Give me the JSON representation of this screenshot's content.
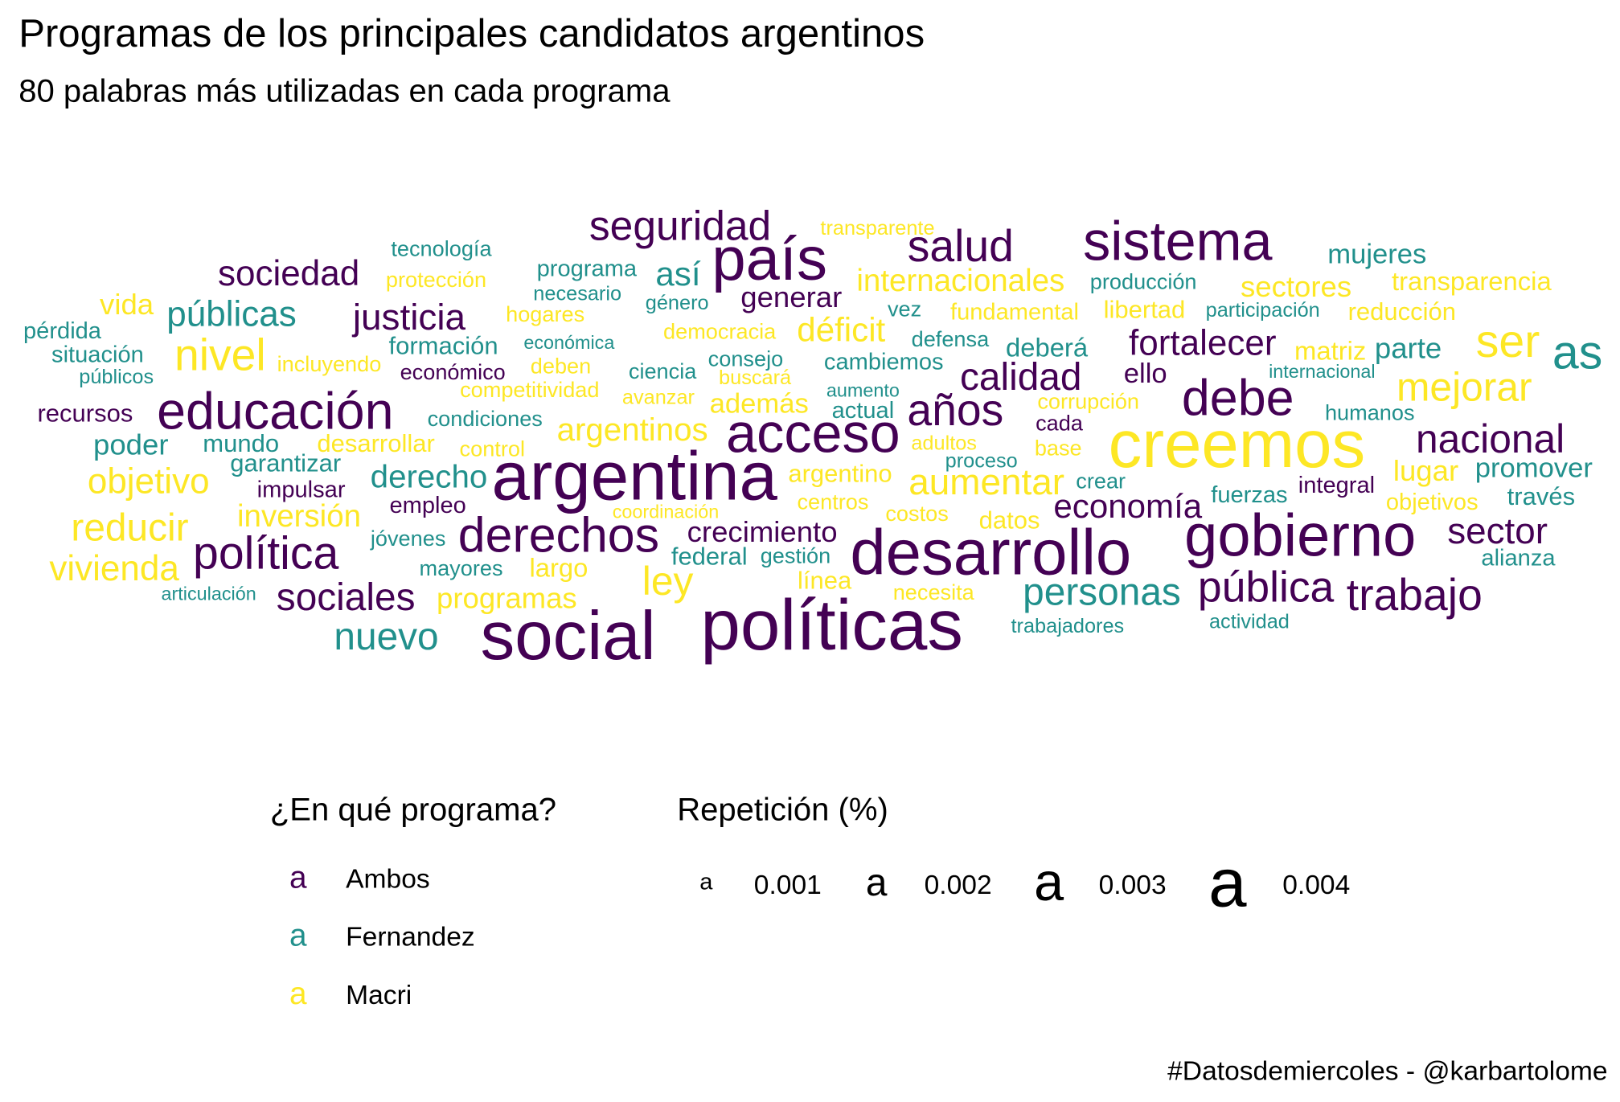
{
  "chart_data": {
    "type": "wordcloud",
    "title": "Programas de los principales candidatos argentinos",
    "subtitle": "80 palabras más utilizadas en cada programa",
    "caption": "#Datosdemiercoles - @karbartolome",
    "colors": {
      "Ambos": "#440154",
      "Fernandez": "#21908C",
      "Macri": "#FDE725"
    },
    "legend_color": {
      "title": "¿En qué programa?",
      "key_glyph": "a",
      "items": [
        {
          "label": "Ambos",
          "color": "#440154"
        },
        {
          "label": "Fernandez",
          "color": "#21908C"
        },
        {
          "label": "Macri",
          "color": "#FDE725"
        }
      ]
    },
    "legend_size": {
      "title": "Repetición (%)",
      "key_glyph": "a",
      "items": [
        {
          "label": "0.001",
          "value": 0.001
        },
        {
          "label": "0.002",
          "value": 0.002
        },
        {
          "label": "0.003",
          "value": 0.003
        },
        {
          "label": "0.004",
          "value": 0.004
        }
      ]
    },
    "words": [
      {
        "text": "seguridad",
        "group": "Ambos",
        "freq": 0.0022
      },
      {
        "text": "transparente",
        "group": "Macri",
        "freq": 0.0008
      },
      {
        "text": "tecnología",
        "group": "Fernandez",
        "freq": 0.0009
      },
      {
        "text": "programa",
        "group": "Fernandez",
        "freq": 0.001
      },
      {
        "text": "país",
        "group": "Ambos",
        "freq": 0.0035
      },
      {
        "text": "salud",
        "group": "Ambos",
        "freq": 0.0024
      },
      {
        "text": "sistema",
        "group": "Ambos",
        "freq": 0.0031
      },
      {
        "text": "mujeres",
        "group": "Fernandez",
        "freq": 0.0013
      },
      {
        "text": "sociedad",
        "group": "Ambos",
        "freq": 0.0018
      },
      {
        "text": "protección",
        "group": "Macri",
        "freq": 0.0009
      },
      {
        "text": "necesario",
        "group": "Fernandez",
        "freq": 0.0008
      },
      {
        "text": "así",
        "group": "Fernandez",
        "freq": 0.0017
      },
      {
        "text": "internacionales",
        "group": "Macri",
        "freq": 0.0015
      },
      {
        "text": "producción",
        "group": "Fernandez",
        "freq": 0.0009
      },
      {
        "text": "sectores",
        "group": "Macri",
        "freq": 0.0014
      },
      {
        "text": "transparencia",
        "group": "Macri",
        "freq": 0.0012
      },
      {
        "text": "vida",
        "group": "Macri",
        "freq": 0.0014
      },
      {
        "text": "públicas",
        "group": "Fernandez",
        "freq": 0.0018
      },
      {
        "text": "justicia",
        "group": "Ambos",
        "freq": 0.0019
      },
      {
        "text": "hogares",
        "group": "Macri",
        "freq": 0.0009
      },
      {
        "text": "género",
        "group": "Fernandez",
        "freq": 0.0008
      },
      {
        "text": "generar",
        "group": "Ambos",
        "freq": 0.0014
      },
      {
        "text": "vez",
        "group": "Fernandez",
        "freq": 0.0009
      },
      {
        "text": "fundamental",
        "group": "Macri",
        "freq": 0.001
      },
      {
        "text": "libertad",
        "group": "Macri",
        "freq": 0.0011
      },
      {
        "text": "participación",
        "group": "Fernandez",
        "freq": 0.0008
      },
      {
        "text": "reducción",
        "group": "Macri",
        "freq": 0.0011
      },
      {
        "text": "pérdida",
        "group": "Fernandez",
        "freq": 0.001
      },
      {
        "text": "económica",
        "group": "Fernandez",
        "freq": 0.0007
      },
      {
        "text": "democracia",
        "group": "Macri",
        "freq": 0.0009
      },
      {
        "text": "déficit",
        "group": "Macri",
        "freq": 0.0017
      },
      {
        "text": "defensa",
        "group": "Fernandez",
        "freq": 0.0009
      },
      {
        "text": "deberá",
        "group": "Fernandez",
        "freq": 0.0012
      },
      {
        "text": "fortalecer",
        "group": "Ambos",
        "freq": 0.0018
      },
      {
        "text": "matriz",
        "group": "Macri",
        "freq": 0.0012
      },
      {
        "text": "parte",
        "group": "Fernandez",
        "freq": 0.0014
      },
      {
        "text": "ser",
        "group": "Macri",
        "freq": 0.0025
      },
      {
        "text": "as",
        "group": "Fernandez",
        "freq": 0.0026
      },
      {
        "text": "situación",
        "group": "Fernandez",
        "freq": 0.001
      },
      {
        "text": "nivel",
        "group": "Macri",
        "freq": 0.0024
      },
      {
        "text": "incluyendo",
        "group": "Macri",
        "freq": 0.0009
      },
      {
        "text": "formación",
        "group": "Fernandez",
        "freq": 0.0011
      },
      {
        "text": "consejo",
        "group": "Fernandez",
        "freq": 0.0009
      },
      {
        "text": "cambiemos",
        "group": "Fernandez",
        "freq": 0.001
      },
      {
        "text": "calidad",
        "group": "Ambos",
        "freq": 0.002
      },
      {
        "text": "ello",
        "group": "Ambos",
        "freq": 0.0013
      },
      {
        "text": "internacional",
        "group": "Fernandez",
        "freq": 0.0007
      },
      {
        "text": "públicos",
        "group": "Fernandez",
        "freq": 0.0008
      },
      {
        "text": "económico",
        "group": "Ambos",
        "freq": 0.0009
      },
      {
        "text": "deben",
        "group": "Macri",
        "freq": 0.0009
      },
      {
        "text": "ciencia",
        "group": "Fernandez",
        "freq": 0.0009
      },
      {
        "text": "buscará",
        "group": "Macri",
        "freq": 0.0008
      },
      {
        "text": "debe",
        "group": "Ambos",
        "freq": 0.0028
      },
      {
        "text": "mejorar",
        "group": "Macri",
        "freq": 0.0021
      },
      {
        "text": "competitividad",
        "group": "Macri",
        "freq": 0.0009
      },
      {
        "text": "aumento",
        "group": "Fernandez",
        "freq": 0.0007
      },
      {
        "text": "educación",
        "group": "Ambos",
        "freq": 0.0029
      },
      {
        "text": "avanzar",
        "group": "Macri",
        "freq": 0.0008
      },
      {
        "text": "además",
        "group": "Macri",
        "freq": 0.0013
      },
      {
        "text": "corrupción",
        "group": "Macri",
        "freq": 0.0009
      },
      {
        "text": "recursos",
        "group": "Ambos",
        "freq": 0.0011
      },
      {
        "text": "actual",
        "group": "Fernandez",
        "freq": 0.001
      },
      {
        "text": "años",
        "group": "Ambos",
        "freq": 0.0024
      },
      {
        "text": "cada",
        "group": "Ambos",
        "freq": 0.0009
      },
      {
        "text": "humanos",
        "group": "Fernandez",
        "freq": 0.0009
      },
      {
        "text": "condiciones",
        "group": "Fernandez",
        "freq": 0.0009
      },
      {
        "text": "argentinos",
        "group": "Macri",
        "freq": 0.0016
      },
      {
        "text": "acceso",
        "group": "Ambos",
        "freq": 0.0031
      },
      {
        "text": "creemos",
        "group": "Macri",
        "freq": 0.0039
      },
      {
        "text": "nacional",
        "group": "Ambos",
        "freq": 0.0021
      },
      {
        "text": "poder",
        "group": "Fernandez",
        "freq": 0.0014
      },
      {
        "text": "mundo",
        "group": "Fernandez",
        "freq": 0.0011
      },
      {
        "text": "desarrollar",
        "group": "Macri",
        "freq": 0.0011
      },
      {
        "text": "control",
        "group": "Macri",
        "freq": 0.0009
      },
      {
        "text": "adultos",
        "group": "Macri",
        "freq": 0.0008
      },
      {
        "text": "base",
        "group": "Macri",
        "freq": 0.0009
      },
      {
        "text": "garantizar",
        "group": "Fernandez",
        "freq": 0.0011
      },
      {
        "text": "proceso",
        "group": "Fernandez",
        "freq": 0.0008
      },
      {
        "text": "lugar",
        "group": "Macri",
        "freq": 0.0014
      },
      {
        "text": "promover",
        "group": "Fernandez",
        "freq": 0.0013
      },
      {
        "text": "objetivo",
        "group": "Macri",
        "freq": 0.0018
      },
      {
        "text": "impulsar",
        "group": "Ambos",
        "freq": 0.001
      },
      {
        "text": "derecho",
        "group": "Fernandez",
        "freq": 0.0016
      },
      {
        "text": "argentina",
        "group": "Ambos",
        "freq": 0.004
      },
      {
        "text": "argentino",
        "group": "Macri",
        "freq": 0.0011
      },
      {
        "text": "aumentar",
        "group": "Macri",
        "freq": 0.0019
      },
      {
        "text": "crear",
        "group": "Fernandez",
        "freq": 0.0009
      },
      {
        "text": "integral",
        "group": "Ambos",
        "freq": 0.001
      },
      {
        "text": "través",
        "group": "Fernandez",
        "freq": 0.0011
      },
      {
        "text": "empleo",
        "group": "Ambos",
        "freq": 0.001
      },
      {
        "text": "centros",
        "group": "Macri",
        "freq": 0.0009
      },
      {
        "text": "fuerzas",
        "group": "Fernandez",
        "freq": 0.001
      },
      {
        "text": "objetivos",
        "group": "Macri",
        "freq": 0.001
      },
      {
        "text": "economía",
        "group": "Ambos",
        "freq": 0.0017
      },
      {
        "text": "inversión",
        "group": "Macri",
        "freq": 0.0015
      },
      {
        "text": "coordinación",
        "group": "Macri",
        "freq": 0.0007
      },
      {
        "text": "costos",
        "group": "Macri",
        "freq": 0.0009
      },
      {
        "text": "datos",
        "group": "Macri",
        "freq": 0.0011
      },
      {
        "text": "reducir",
        "group": "Macri",
        "freq": 0.002
      },
      {
        "text": "crecimiento",
        "group": "Ambos",
        "freq": 0.0014
      },
      {
        "text": "gobierno",
        "group": "Ambos",
        "freq": 0.0034
      },
      {
        "text": "sector",
        "group": "Ambos",
        "freq": 0.0019
      },
      {
        "text": "derechos",
        "group": "Ambos",
        "freq": 0.0027
      },
      {
        "text": "jóvenes",
        "group": "Fernandez",
        "freq": 0.0009
      },
      {
        "text": "desarrollo",
        "group": "Ambos",
        "freq": 0.0037
      },
      {
        "text": "política",
        "group": "Ambos",
        "freq": 0.0025
      },
      {
        "text": "vivienda",
        "group": "Macri",
        "freq": 0.0018
      },
      {
        "text": "federal",
        "group": "Fernandez",
        "freq": 0.0011
      },
      {
        "text": "gestión",
        "group": "Fernandez",
        "freq": 0.0009
      },
      {
        "text": "alianza",
        "group": "Fernandez",
        "freq": 0.001
      },
      {
        "text": "mayores",
        "group": "Fernandez",
        "freq": 0.0009
      },
      {
        "text": "largo",
        "group": "Macri",
        "freq": 0.0012
      },
      {
        "text": "ley",
        "group": "Macri",
        "freq": 0.0021
      },
      {
        "text": "línea",
        "group": "Macri",
        "freq": 0.0011
      },
      {
        "text": "pública",
        "group": "Ambos",
        "freq": 0.0023
      },
      {
        "text": "articulación",
        "group": "Fernandez",
        "freq": 0.0007
      },
      {
        "text": "sociales",
        "group": "Ambos",
        "freq": 0.002
      },
      {
        "text": "programas",
        "group": "Macri",
        "freq": 0.0014
      },
      {
        "text": "necesita",
        "group": "Macri",
        "freq": 0.0009
      },
      {
        "text": "personas",
        "group": "Fernandez",
        "freq": 0.002
      },
      {
        "text": "trabajo",
        "group": "Ambos",
        "freq": 0.0024
      },
      {
        "text": "actividad",
        "group": "Fernandez",
        "freq": 0.0008
      },
      {
        "text": "social",
        "group": "Ambos",
        "freq": 0.004
      },
      {
        "text": "políticas",
        "group": "Ambos",
        "freq": 0.0042
      },
      {
        "text": "trabajadores",
        "group": "Fernandez",
        "freq": 0.0008
      },
      {
        "text": "nuevo",
        "group": "Fernandez",
        "freq": 0.002
      }
    ]
  }
}
